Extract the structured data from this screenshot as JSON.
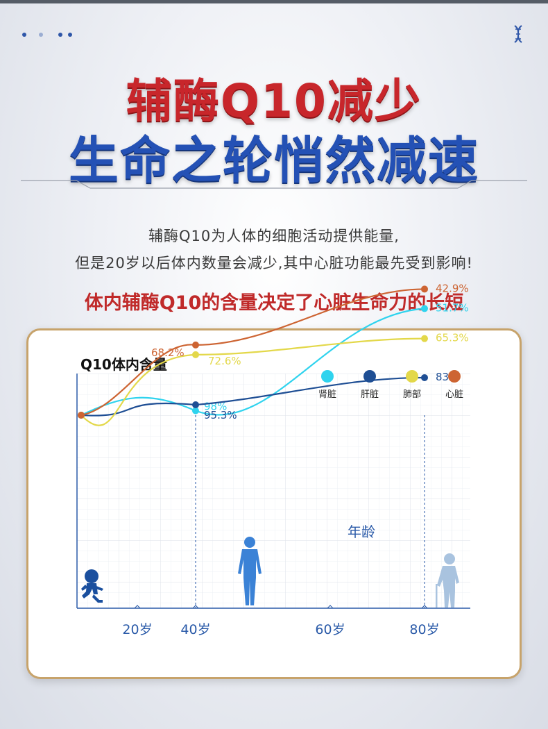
{
  "header": {
    "title_line1": "辅酶Q10减少",
    "title_line2": "生命之轮悄然减速"
  },
  "description": {
    "line1": "辅酶Q10为人体的细胞活动提供能量,",
    "line2": "但是20岁以后体内数量会减少,其中心脏功能最先受到影响!"
  },
  "highlight": "体内辅酶Q10的含量决定了心脏生命力的长短",
  "icons": [
    "dna-icon",
    "child-running-icon",
    "adult-figure-icon",
    "elderly-cane-icon"
  ],
  "colors": {
    "title_red": "#c8262b",
    "title_blue": "#2451b5",
    "highlight_red": "#c02a2a",
    "card_border": "#c7a36b"
  },
  "chart_data": {
    "type": "line",
    "title": "Q10体内含量",
    "xlabel": "年龄",
    "categories": [
      "20岁",
      "40岁",
      "60岁",
      "80岁"
    ],
    "x": [
      20,
      40,
      60,
      80
    ],
    "ylim": [
      0,
      100
    ],
    "grid": true,
    "legend_position": "top-right",
    "series": [
      {
        "name": "肾脏",
        "color": "#2fd3ee",
        "points": [
          [
            20,
            100
          ],
          [
            40,
            98
          ],
          [
            80,
            51.7
          ]
        ],
        "labels": [
          "",
          "98%",
          "51.7%"
        ]
      },
      {
        "name": "肝脏",
        "color": "#1e4e94",
        "points": [
          [
            20,
            100
          ],
          [
            40,
            95.3
          ],
          [
            80,
            83
          ]
        ],
        "labels": [
          "",
          "95.3%",
          "83%"
        ]
      },
      {
        "name": "肺部",
        "color": "#e3d84a",
        "points": [
          [
            20,
            100
          ],
          [
            40,
            72.6
          ],
          [
            80,
            65.3
          ]
        ],
        "labels": [
          "",
          "72.6%",
          "65.3%"
        ]
      },
      {
        "name": "心脏",
        "color": "#cd6432",
        "points": [
          [
            20,
            100
          ],
          [
            40,
            68.2
          ],
          [
            80,
            42.9
          ]
        ],
        "labels": [
          "",
          "68.2%",
          "42.9%"
        ]
      }
    ]
  }
}
